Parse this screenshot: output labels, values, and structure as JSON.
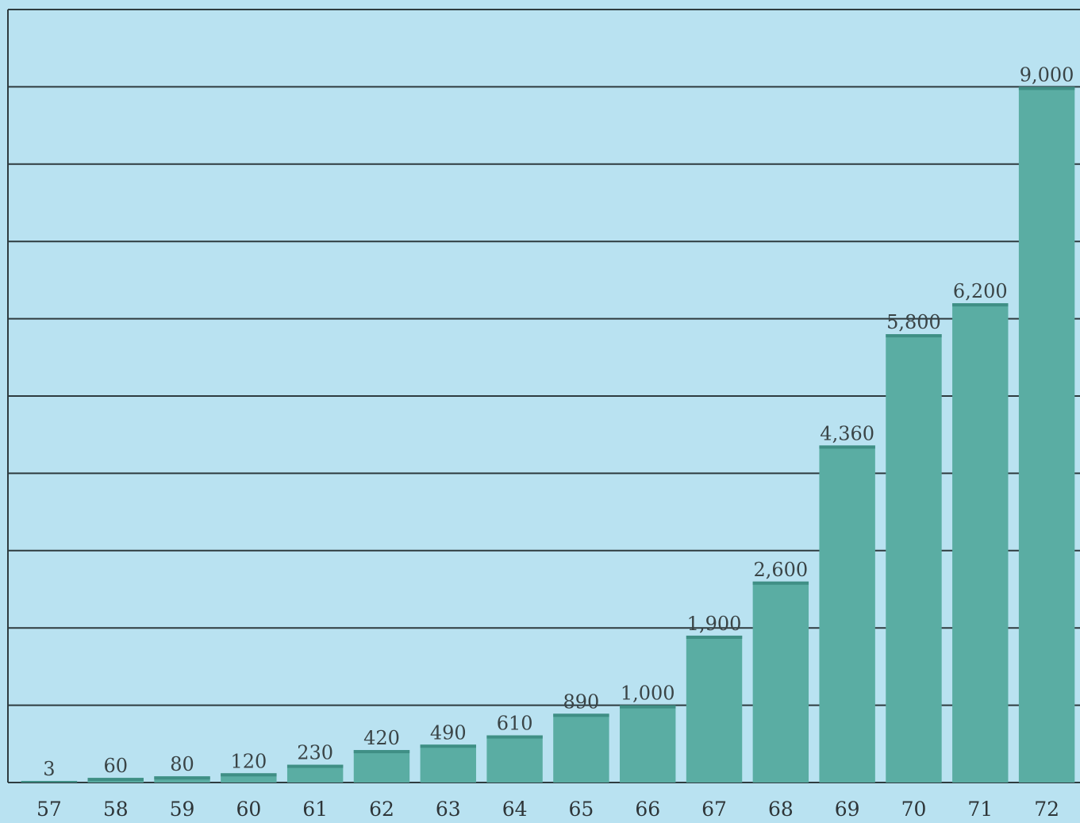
{
  "chart_data": {
    "type": "bar",
    "categories": [
      "57",
      "58",
      "59",
      "60",
      "61",
      "62",
      "63",
      "64",
      "65",
      "66",
      "67",
      "68",
      "69",
      "70",
      "71",
      "72"
    ],
    "values": [
      3,
      60,
      80,
      120,
      230,
      420,
      490,
      610,
      890,
      1000,
      1900,
      2600,
      4360,
      5800,
      6200,
      9000
    ],
    "value_labels": [
      "3",
      "60",
      "80",
      "120",
      "230",
      "420",
      "490",
      "610",
      "890",
      "1,000",
      "1,900",
      "2,600",
      "4,360",
      "5,800",
      "6,200",
      "9,000"
    ],
    "title": "",
    "xlabel": "",
    "ylabel": "",
    "ylim": [
      0,
      10000
    ],
    "grid": true,
    "colors": {
      "background": "#b9e2f1",
      "bar": "#5aada3",
      "bar_top": "#3f8f85",
      "gridline": "#2e3b3f"
    }
  }
}
